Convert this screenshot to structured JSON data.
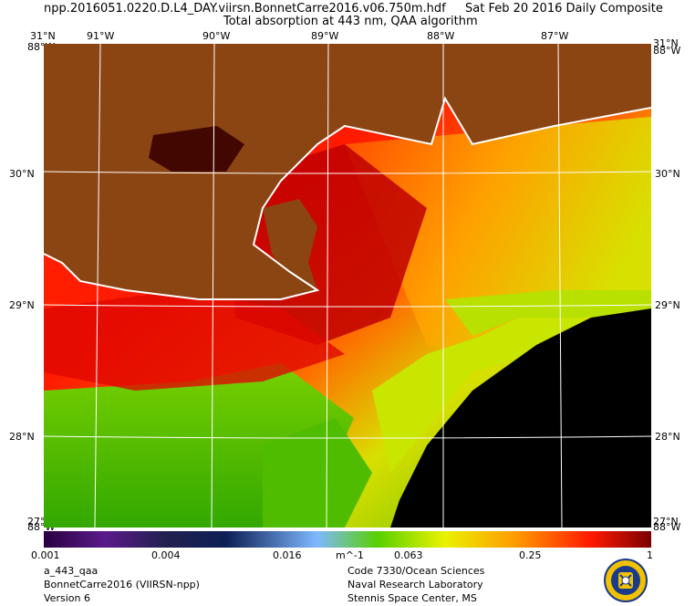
{
  "header": {
    "filename": "npp.2016051.0220.D.L4_DAY.viirsn.BonnetCarre2016.v06.750m.hdf",
    "date": "Sat Feb 20 2016 Daily Composite",
    "subtitle": "Total absorption at 443 nm, QAA algorithm"
  },
  "axes": {
    "top_lon": [
      "91°W",
      "90°W",
      "89°W",
      "88°W",
      "87°W"
    ],
    "lat": [
      "31°N",
      "30°N",
      "29°N",
      "28°N",
      "27°N"
    ],
    "corner_top": "88°W",
    "corner_bottom": "88°W"
  },
  "map": {
    "land_color": "#8B4513",
    "nodata_color": "#000000",
    "grid_color": "#ffffff"
  },
  "colorbar": {
    "ticks": [
      "0.001",
      "0.004",
      "0.016",
      "m^-1",
      "0.063",
      "0.25",
      "1"
    ],
    "colors": [
      "#2a0040",
      "#5a1a8a",
      "#22204f",
      "#0d1f55",
      "#7fb8ff",
      "#58d000",
      "#eaf200",
      "#ff9800",
      "#ff1a00",
      "#7a0000"
    ]
  },
  "footer_left": [
    "a_443_qaa",
    "BonnetCarre2016 (VIIRSN-npp)",
    "Version 6"
  ],
  "footer_right": [
    "Code 7330/Ocean Sciences",
    "Naval Research Laboratory",
    "Stennis Space Center, MS"
  ],
  "logo": {
    "icon": "nrl-seal-icon"
  }
}
